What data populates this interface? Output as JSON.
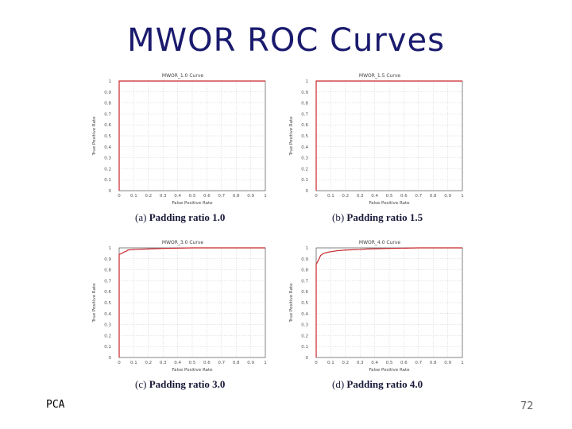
{
  "slide": {
    "title": "MWOR ROC Curves",
    "footer_left": "PCA",
    "page_number": "72"
  },
  "colors": {
    "curve": "#c8262b",
    "grid": "#cccccc",
    "frame": "#555555",
    "title": "#1a1a6e"
  },
  "chart_data": [
    {
      "type": "line",
      "title": "MWOR_1.0 Curve",
      "caption_label": "(a)",
      "caption_text": "Padding ratio 1.0",
      "xlabel": "False Positive Rate",
      "ylabel": "True Positive Rate",
      "xlim": [
        0,
        1
      ],
      "ylim": [
        0,
        1
      ],
      "xticks": [
        "0",
        "0.1",
        "0.2",
        "0.3",
        "0.4",
        "0.5",
        "0.6",
        "0.7",
        "0.8",
        "0.9",
        "1"
      ],
      "yticks": [
        "0",
        "0.1",
        "0.2",
        "0.3",
        "0.4",
        "0.5",
        "0.6",
        "0.7",
        "0.8",
        "0.9",
        "1"
      ],
      "grid": true,
      "series": [
        {
          "x": [
            0,
            0,
            1
          ],
          "y": [
            0,
            1,
            1
          ]
        }
      ]
    },
    {
      "type": "line",
      "title": "MWOR_1.5 Curve",
      "caption_label": "(b)",
      "caption_text": "Padding ratio 1.5",
      "xlabel": "False Positive Rate",
      "ylabel": "True Positive Rate",
      "xlim": [
        0,
        1
      ],
      "ylim": [
        0,
        1
      ],
      "xticks": [
        "0",
        "0.1",
        "0.2",
        "0.3",
        "0.4",
        "0.5",
        "0.6",
        "0.7",
        "0.8",
        "0.9",
        "1"
      ],
      "yticks": [
        "0",
        "0.1",
        "0.2",
        "0.3",
        "0.4",
        "0.5",
        "0.6",
        "0.7",
        "0.8",
        "0.9",
        "1"
      ],
      "grid": true,
      "series": [
        {
          "x": [
            0,
            0,
            1
          ],
          "y": [
            0,
            1,
            1
          ]
        }
      ]
    },
    {
      "type": "line",
      "title": "MWOR_3.0 Curve",
      "caption_label": "(c)",
      "caption_text": "Padding ratio 3.0",
      "xlabel": "False Positive Rate",
      "ylabel": "True Positive Rate",
      "xlim": [
        0,
        1
      ],
      "ylim": [
        0,
        1
      ],
      "xticks": [
        "0",
        "0.1",
        "0.2",
        "0.3",
        "0.4",
        "0.5",
        "0.6",
        "0.7",
        "0.8",
        "0.9",
        "1"
      ],
      "yticks": [
        "0",
        "0.1",
        "0.2",
        "0.3",
        "0.4",
        "0.5",
        "0.6",
        "0.7",
        "0.8",
        "0.9",
        "1"
      ],
      "grid": true,
      "series": [
        {
          "x": [
            0,
            0,
            0.02,
            0.03,
            0.05,
            0.06,
            0.1,
            0.2,
            0.3,
            0.5,
            0.7,
            0.9,
            1
          ],
          "y": [
            0,
            0.94,
            0.95,
            0.96,
            0.97,
            0.98,
            0.985,
            0.99,
            0.995,
            1,
            1,
            1,
            1
          ]
        }
      ]
    },
    {
      "type": "line",
      "title": "MWOR_4.0 Curve",
      "caption_label": "(d)",
      "caption_text": "Padding ratio 4.0",
      "xlabel": "False Positive Rate",
      "ylabel": "True Positive Rate",
      "xlim": [
        0,
        1
      ],
      "ylim": [
        0,
        1
      ],
      "xticks": [
        "0",
        "0.1",
        "0.2",
        "0.3",
        "0.4",
        "0.5",
        "0.6",
        "0.7",
        "0.8",
        "0.9",
        "1"
      ],
      "yticks": [
        "0",
        "0.1",
        "0.2",
        "0.3",
        "0.4",
        "0.5",
        "0.6",
        "0.7",
        "0.8",
        "0.9",
        "1"
      ],
      "grid": true,
      "series": [
        {
          "x": [
            0,
            0,
            0.02,
            0.03,
            0.05,
            0.08,
            0.1,
            0.15,
            0.2,
            0.3,
            0.35,
            0.5,
            0.7,
            0.9,
            1
          ],
          "y": [
            0,
            0.85,
            0.9,
            0.93,
            0.95,
            0.96,
            0.965,
            0.975,
            0.98,
            0.985,
            0.99,
            0.995,
            1,
            1,
            1
          ]
        }
      ]
    }
  ]
}
